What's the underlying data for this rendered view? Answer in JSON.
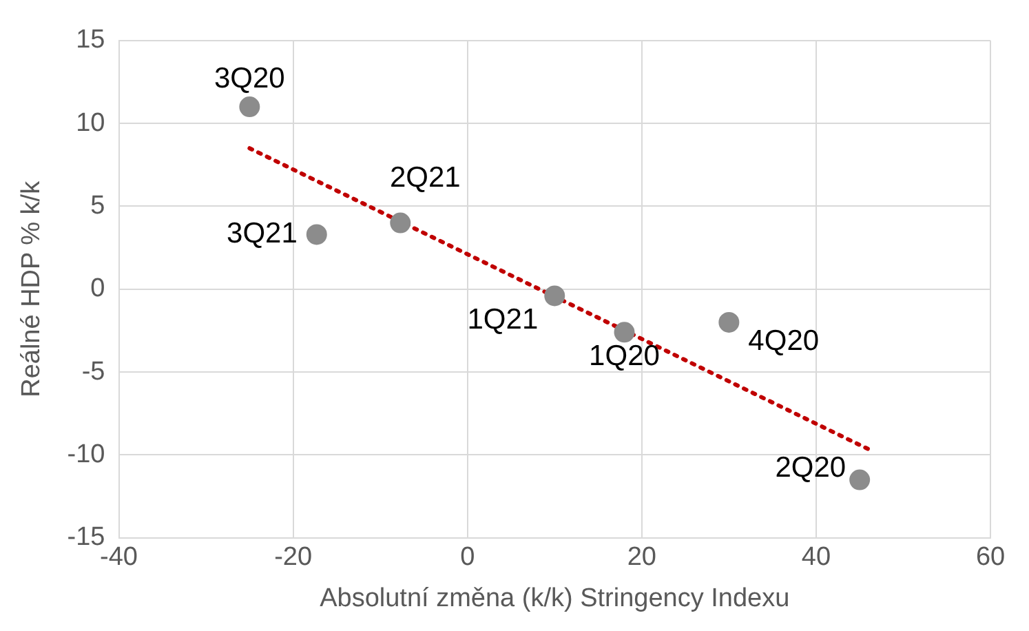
{
  "chart_data": {
    "type": "scatter",
    "xlabel": "Absolutní změna (k/k) Stringency Indexu",
    "ylabel": "Reálné HDP % k/k",
    "xlim": [
      -40,
      60
    ],
    "xticks": [
      -40,
      -20,
      0,
      20,
      40,
      60
    ],
    "ylim": [
      -15,
      15
    ],
    "yticks": [
      -15,
      -10,
      -5,
      0,
      5,
      10,
      15
    ],
    "grid": true,
    "legend": false,
    "marker": "circle",
    "series": [
      {
        "color": "#8c8c8c",
        "x": [
          18,
          45,
          -25,
          30,
          10,
          -7.7,
          -17.3
        ],
        "values": [
          -2.6,
          -11.5,
          11,
          -2,
          -0.4,
          4,
          3.3
        ]
      },
      {
        "type": "line",
        "color": "#c00000",
        "line_style": "dotted",
        "marker": "none",
        "x": [
          -25,
          46.2
        ],
        "values": [
          8.5,
          -9.7
        ]
      }
    ],
    "annotations": [
      {
        "text": "1Q20",
        "x": 18,
        "y": -2.6
      },
      {
        "text": "2Q20",
        "x": 45,
        "y": -11.5
      },
      {
        "text": "3Q20",
        "x": -25,
        "y": 11
      },
      {
        "text": "4Q20",
        "x": 30,
        "y": -2
      },
      {
        "text": "1Q21",
        "x": 10,
        "y": -0.4
      },
      {
        "text": "2Q21",
        "x": -7.7,
        "y": 4
      },
      {
        "text": "3Q21",
        "x": -17.3,
        "y": 3.3
      }
    ]
  }
}
